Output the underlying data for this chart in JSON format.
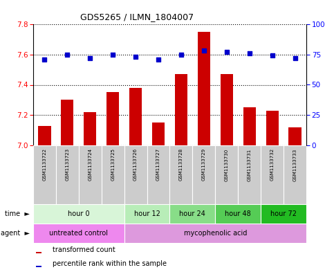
{
  "title": "GDS5265 / ILMN_1804007",
  "samples": [
    "GSM1133722",
    "GSM1133723",
    "GSM1133724",
    "GSM1133725",
    "GSM1133726",
    "GSM1133727",
    "GSM1133728",
    "GSM1133729",
    "GSM1133730",
    "GSM1133731",
    "GSM1133732",
    "GSM1133733"
  ],
  "bar_values": [
    7.13,
    7.3,
    7.22,
    7.35,
    7.38,
    7.15,
    7.47,
    7.75,
    7.47,
    7.25,
    7.23,
    7.12
  ],
  "percentile_values": [
    71,
    75,
    72,
    75,
    73,
    71,
    75,
    78,
    77,
    76,
    74,
    72
  ],
  "bar_color": "#cc0000",
  "percentile_color": "#0000cc",
  "ylim_left": [
    7.0,
    7.8
  ],
  "ylim_right": [
    0,
    100
  ],
  "yticks_left": [
    7.0,
    7.2,
    7.4,
    7.6,
    7.8
  ],
  "yticks_right": [
    0,
    25,
    50,
    75,
    100
  ],
  "time_groups": [
    {
      "label": "hour 0",
      "start": 0,
      "end": 4,
      "color": "#d8f5d8"
    },
    {
      "label": "hour 12",
      "start": 4,
      "end": 6,
      "color": "#b8edб8"
    },
    {
      "label": "hour 24",
      "start": 6,
      "end": 8,
      "color": "#88dd88"
    },
    {
      "label": "hour 48",
      "start": 8,
      "end": 10,
      "color": "#55cc55"
    },
    {
      "label": "hour 72",
      "start": 10,
      "end": 12,
      "color": "#22bb22"
    }
  ],
  "agent_groups": [
    {
      "label": "untreated control",
      "start": 0,
      "end": 4,
      "color": "#ee88ee"
    },
    {
      "label": "mycophenolic acid",
      "start": 4,
      "end": 12,
      "color": "#dd99dd"
    }
  ],
  "legend_bar_label": "transformed count",
  "legend_pct_label": "percentile rank within the sample",
  "time_label": "time",
  "agent_label": "agent",
  "background_color": "#ffffff",
  "plot_bg_color": "#ffffff",
  "grid_color": "#000000",
  "sample_box_color": "#cccccc",
  "sample_box_edge": "#aaaaaa"
}
